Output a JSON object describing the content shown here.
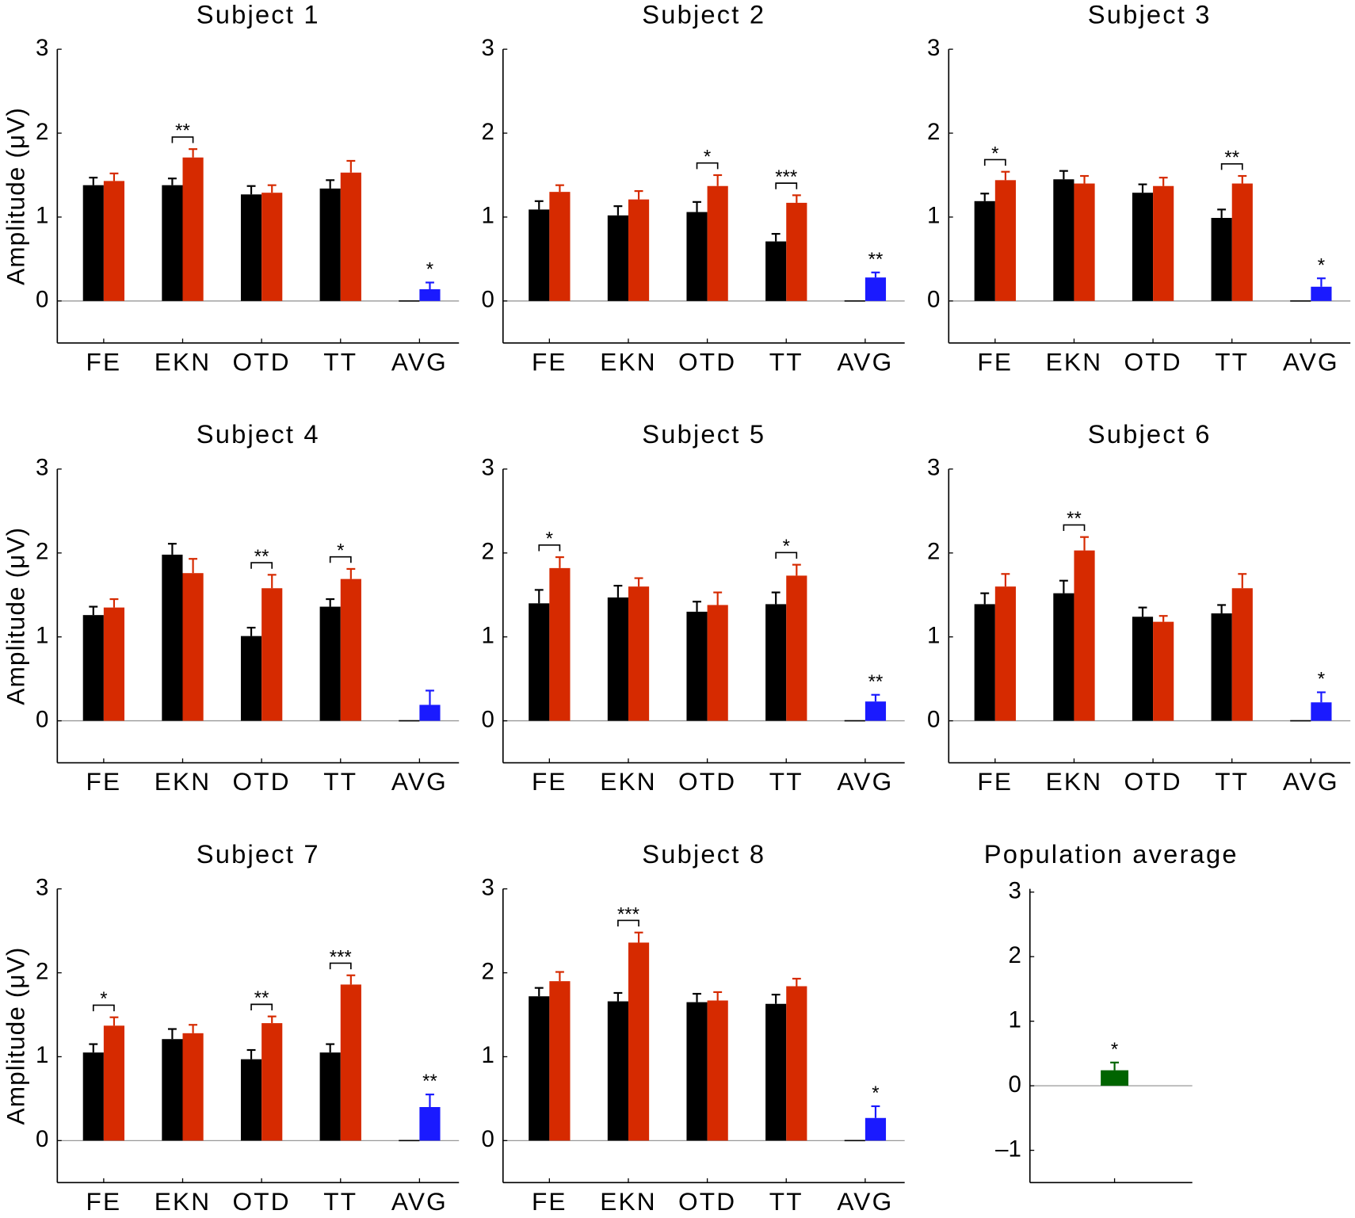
{
  "chart_data": [
    {
      "type": "bar",
      "title": "Subject 1",
      "ylabel": "Amplitude (μV)",
      "categories": [
        "FE",
        "EKN",
        "OTD",
        "TT",
        "AVG"
      ],
      "series": [
        {
          "color": "#000000",
          "values": [
            1.38,
            1.38,
            1.27,
            1.34,
            0
          ],
          "errors": [
            0.09,
            0.08,
            0.1,
            0.1,
            null
          ]
        },
        {
          "color": "#d62a00",
          "values": [
            1.43,
            1.71,
            1.29,
            1.53,
            null
          ],
          "errors": [
            0.09,
            0.1,
            0.09,
            0.14,
            null
          ]
        },
        {
          "color": "#1a1aff",
          "values": [
            null,
            null,
            null,
            null,
            0.14
          ],
          "errors": [
            null,
            null,
            null,
            null,
            0.08
          ]
        }
      ],
      "significance": [
        null,
        "**",
        null,
        null,
        "*"
      ],
      "ylim": [
        -0.5,
        3
      ],
      "yticks": [
        0,
        1,
        2,
        3
      ]
    },
    {
      "type": "bar",
      "title": "Subject 2",
      "categories": [
        "FE",
        "EKN",
        "OTD",
        "TT",
        "AVG"
      ],
      "series": [
        {
          "color": "#000000",
          "values": [
            1.09,
            1.02,
            1.06,
            0.71,
            0
          ],
          "errors": [
            0.1,
            0.11,
            0.12,
            0.09,
            null
          ]
        },
        {
          "color": "#d62a00",
          "values": [
            1.3,
            1.21,
            1.37,
            1.17,
            null
          ],
          "errors": [
            0.08,
            0.1,
            0.13,
            0.09,
            null
          ]
        },
        {
          "color": "#1a1aff",
          "values": [
            null,
            null,
            null,
            null,
            0.28
          ],
          "errors": [
            null,
            null,
            null,
            null,
            0.06
          ]
        }
      ],
      "significance": [
        null,
        null,
        "*",
        "***",
        "**"
      ],
      "ylim": [
        -0.5,
        3
      ],
      "yticks": [
        0,
        1,
        2,
        3
      ]
    },
    {
      "type": "bar",
      "title": "Subject 3",
      "categories": [
        "FE",
        "EKN",
        "OTD",
        "TT",
        "AVG"
      ],
      "series": [
        {
          "color": "#000000",
          "values": [
            1.19,
            1.45,
            1.29,
            0.99,
            0
          ],
          "errors": [
            0.09,
            0.1,
            0.1,
            0.1,
            null
          ]
        },
        {
          "color": "#d62a00",
          "values": [
            1.44,
            1.4,
            1.37,
            1.4,
            null
          ],
          "errors": [
            0.1,
            0.09,
            0.1,
            0.09,
            null
          ]
        },
        {
          "color": "#1a1aff",
          "values": [
            null,
            null,
            null,
            null,
            0.17
          ],
          "errors": [
            null,
            null,
            null,
            null,
            0.1
          ]
        }
      ],
      "significance": [
        "*",
        null,
        null,
        "**",
        "*"
      ],
      "ylim": [
        -0.5,
        3
      ],
      "yticks": [
        0,
        1,
        2,
        3
      ]
    },
    {
      "type": "bar",
      "title": "Subject 4",
      "ylabel": "Amplitude (μV)",
      "categories": [
        "FE",
        "EKN",
        "OTD",
        "TT",
        "AVG"
      ],
      "series": [
        {
          "color": "#000000",
          "values": [
            1.26,
            1.98,
            1.01,
            1.36,
            0
          ],
          "errors": [
            0.1,
            0.13,
            0.1,
            0.09,
            null
          ]
        },
        {
          "color": "#d62a00",
          "values": [
            1.35,
            1.76,
            1.58,
            1.69,
            null
          ],
          "errors": [
            0.1,
            0.17,
            0.16,
            0.12,
            null
          ]
        },
        {
          "color": "#1a1aff",
          "values": [
            null,
            null,
            null,
            null,
            0.19
          ],
          "errors": [
            null,
            null,
            null,
            null,
            0.17
          ]
        }
      ],
      "significance": [
        null,
        null,
        "**",
        "*",
        null
      ],
      "ylim": [
        -0.5,
        3
      ],
      "yticks": [
        0,
        1,
        2,
        3
      ]
    },
    {
      "type": "bar",
      "title": "Subject 5",
      "categories": [
        "FE",
        "EKN",
        "OTD",
        "TT",
        "AVG"
      ],
      "series": [
        {
          "color": "#000000",
          "values": [
            1.4,
            1.47,
            1.3,
            1.39,
            0
          ],
          "errors": [
            0.16,
            0.14,
            0.12,
            0.14,
            null
          ]
        },
        {
          "color": "#d62a00",
          "values": [
            1.82,
            1.6,
            1.38,
            1.73,
            null
          ],
          "errors": [
            0.13,
            0.1,
            0.15,
            0.13,
            null
          ]
        },
        {
          "color": "#1a1aff",
          "values": [
            null,
            null,
            null,
            null,
            0.23
          ],
          "errors": [
            null,
            null,
            null,
            null,
            0.08
          ]
        }
      ],
      "significance": [
        "*",
        null,
        null,
        "*",
        "**"
      ],
      "ylim": [
        -0.5,
        3
      ],
      "yticks": [
        0,
        1,
        2,
        3
      ]
    },
    {
      "type": "bar",
      "title": "Subject 6",
      "categories": [
        "FE",
        "EKN",
        "OTD",
        "TT",
        "AVG"
      ],
      "series": [
        {
          "color": "#000000",
          "values": [
            1.39,
            1.52,
            1.24,
            1.28,
            0
          ],
          "errors": [
            0.13,
            0.15,
            0.11,
            0.1,
            null
          ]
        },
        {
          "color": "#d62a00",
          "values": [
            1.6,
            2.03,
            1.18,
            1.58,
            null
          ],
          "errors": [
            0.15,
            0.16,
            0.07,
            0.17,
            null
          ]
        },
        {
          "color": "#1a1aff",
          "values": [
            null,
            null,
            null,
            null,
            0.22
          ],
          "errors": [
            null,
            null,
            null,
            null,
            0.12
          ]
        }
      ],
      "significance": [
        null,
        "**",
        null,
        null,
        "*"
      ],
      "ylim": [
        -0.5,
        3
      ],
      "yticks": [
        0,
        1,
        2,
        3
      ]
    },
    {
      "type": "bar",
      "title": "Subject 7",
      "ylabel": "Amplitude (μV)",
      "categories": [
        "FE",
        "EKN",
        "OTD",
        "TT",
        "AVG"
      ],
      "series": [
        {
          "color": "#000000",
          "values": [
            1.05,
            1.21,
            0.97,
            1.05,
            0
          ],
          "errors": [
            0.1,
            0.12,
            0.11,
            0.1,
            null
          ]
        },
        {
          "color": "#d62a00",
          "values": [
            1.37,
            1.28,
            1.4,
            1.86,
            null
          ],
          "errors": [
            0.1,
            0.1,
            0.08,
            0.11,
            null
          ]
        },
        {
          "color": "#1a1aff",
          "values": [
            null,
            null,
            null,
            null,
            0.4
          ],
          "errors": [
            null,
            null,
            null,
            null,
            0.15
          ]
        }
      ],
      "significance": [
        "*",
        null,
        "**",
        "***",
        "**"
      ],
      "ylim": [
        -0.5,
        3
      ],
      "yticks": [
        0,
        1,
        2,
        3
      ]
    },
    {
      "type": "bar",
      "title": "Subject 8",
      "categories": [
        "FE",
        "EKN",
        "OTD",
        "TT",
        "AVG"
      ],
      "series": [
        {
          "color": "#000000",
          "values": [
            1.72,
            1.66,
            1.65,
            1.63,
            0
          ],
          "errors": [
            0.1,
            0.1,
            0.1,
            0.11,
            null
          ]
        },
        {
          "color": "#d62a00",
          "values": [
            1.9,
            2.36,
            1.67,
            1.84,
            null
          ],
          "errors": [
            0.11,
            0.12,
            0.1,
            0.09,
            null
          ]
        },
        {
          "color": "#1a1aff",
          "values": [
            null,
            null,
            null,
            null,
            0.27
          ],
          "errors": [
            null,
            null,
            null,
            null,
            0.14
          ]
        }
      ],
      "significance": [
        null,
        "***",
        null,
        null,
        "*"
      ],
      "ylim": [
        -0.5,
        3
      ],
      "yticks": [
        0,
        1,
        2,
        3
      ]
    },
    {
      "type": "bar",
      "title": "Population average",
      "categories": [
        null
      ],
      "series": [
        {
          "color": "#006400",
          "values": [
            0.24
          ],
          "errors": [
            0.12
          ]
        }
      ],
      "significance": [
        "*"
      ],
      "ylim": [
        -1.5,
        3.05
      ],
      "yticks": [
        {
          "value": -1,
          "label": "–1"
        },
        0,
        1,
        2,
        3
      ]
    }
  ]
}
